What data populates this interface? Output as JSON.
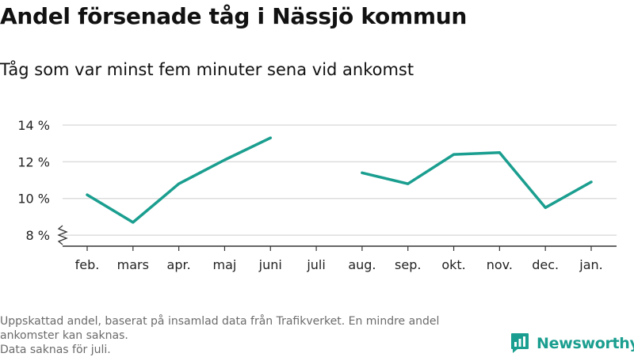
{
  "title": "Andel försenade tåg i Nässjö kommun",
  "subtitle": "Tåg som var minst fem minuter sena vid ankomst",
  "chart_data": {
    "type": "line",
    "categories": [
      "feb.",
      "mars",
      "apr.",
      "maj",
      "juni",
      "juli",
      "aug.",
      "sep.",
      "okt.",
      "nov.",
      "dec.",
      "jan."
    ],
    "series": [
      {
        "values": [
          10.2,
          8.7,
          10.8,
          12.1,
          13.3,
          null,
          11.4,
          10.8,
          12.4,
          12.5,
          9.5,
          10.9
        ]
      }
    ],
    "y_ticks": [
      8,
      10,
      12,
      14
    ],
    "y_tick_labels": [
      "8 %",
      "10 %",
      "12 %",
      "14 %"
    ],
    "ylim": [
      7.4,
      14.0
    ],
    "y_axis_break": true,
    "grid": true,
    "line_color": "#1a9e8f"
  },
  "footnote": {
    "line1": "Uppskattad andel, baserat på insamlad data från Trafikverket. En mindre andel ankomster kan saknas.",
    "line2": "Data saknas för juli."
  },
  "brand": {
    "name": "Newsworthy",
    "icon": "newsworthy-logo-icon",
    "color": "#1a9e8f"
  }
}
